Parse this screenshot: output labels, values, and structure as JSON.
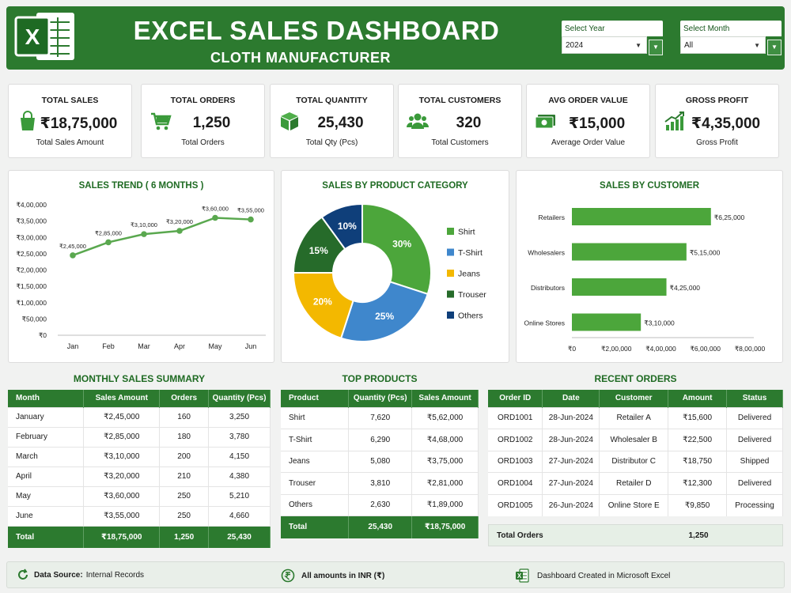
{
  "header": {
    "title": "EXCEL SALES DASHBOARD",
    "subtitle": "CLOTH MANUFACTURER",
    "logo_letter": "X",
    "year_filter": {
      "label": "Select Year",
      "value": "2024"
    },
    "month_filter": {
      "label": "Select Month",
      "value": "All"
    }
  },
  "kpis": [
    {
      "title": "TOTAL SALES",
      "value": "₹18,75,000",
      "sub": "Total Sales Amount",
      "icon": "shopping-bag-icon"
    },
    {
      "title": "TOTAL ORDERS",
      "value": "1,250",
      "sub": "Total Orders",
      "icon": "shopping-cart-icon"
    },
    {
      "title": "TOTAL QUANTITY",
      "value": "25,430",
      "sub": "Total Qty (Pcs)",
      "icon": "box-icon"
    },
    {
      "title": "TOTAL CUSTOMERS",
      "value": "320",
      "sub": "Total Customers",
      "icon": "users-icon"
    },
    {
      "title": "AVG ORDER VALUE",
      "value": "₹15,000",
      "sub": "Average Order Value",
      "icon": "cash-icon"
    },
    {
      "title": "GROSS PROFIT",
      "value": "₹4,35,000",
      "sub": "Gross Profit",
      "icon": "growth-chart-icon"
    }
  ],
  "chart_data": [
    {
      "type": "line",
      "title": "SALES TREND ( 6 MONTHS )",
      "categories": [
        "Jan",
        "Feb",
        "Mar",
        "Apr",
        "May",
        "Jun"
      ],
      "values": [
        245000,
        285000,
        310000,
        320000,
        360000,
        355000
      ],
      "data_labels": [
        "₹2,45,000",
        "₹2,85,000",
        "₹3,10,000",
        "₹3,20,000",
        "₹3,60,000",
        "₹3,55,000"
      ],
      "ylim": [
        0,
        400000
      ],
      "y_ticks": [
        "₹0",
        "₹50,000",
        "₹1,00,000",
        "₹1,50,000",
        "₹2,00,000",
        "₹2,50,000",
        "₹3,00,000",
        "₹3,50,000",
        "₹4,00,000"
      ],
      "color": "#5aa84f",
      "grid": false
    },
    {
      "type": "pie",
      "title": "SALES BY PRODUCT CATEGORY",
      "donut": true,
      "categories": [
        "Shirt",
        "T-Shirt",
        "Jeans",
        "Trouser",
        "Others"
      ],
      "values": [
        30,
        25,
        20,
        15,
        10
      ],
      "labels": [
        "30%",
        "25%",
        "20%",
        "15%",
        "10%"
      ],
      "colors": [
        "#4ca63b",
        "#3f87cc",
        "#f3b800",
        "#266b2a",
        "#0f3f7a"
      ],
      "legend": "right"
    },
    {
      "type": "bar",
      "orientation": "horizontal",
      "title": "SALES BY CUSTOMER",
      "categories": [
        "Retailers",
        "Wholesalers",
        "Distributors",
        "Online Stores"
      ],
      "values": [
        625000,
        515000,
        425000,
        310000
      ],
      "data_labels": [
        "₹6,25,000",
        "₹5,15,000",
        "₹4,25,000",
        "₹3,10,000"
      ],
      "xlim": [
        0,
        800000
      ],
      "x_ticks": [
        "₹0",
        "₹2,00,000",
        "₹4,00,000",
        "₹6,00,000",
        "₹8,00,000"
      ],
      "color": "#4ca63b"
    }
  ],
  "monthly_summary": {
    "title": "MONTHLY SALES SUMMARY",
    "headers": [
      "Month",
      "Sales Amount",
      "Orders",
      "Quantity (Pcs)"
    ],
    "rows": [
      [
        "January",
        "₹2,45,000",
        "160",
        "3,250"
      ],
      [
        "February",
        "₹2,85,000",
        "180",
        "3,780"
      ],
      [
        "March",
        "₹3,10,000",
        "200",
        "4,150"
      ],
      [
        "April",
        "₹3,20,000",
        "210",
        "4,380"
      ],
      [
        "May",
        "₹3,60,000",
        "250",
        "5,210"
      ],
      [
        "June",
        "₹3,55,000",
        "250",
        "4,660"
      ]
    ],
    "total": [
      "Total",
      "₹18,75,000",
      "1,250",
      "25,430"
    ]
  },
  "top_products": {
    "title": "TOP PRODUCTS",
    "headers": [
      "Product",
      "Quantity (Pcs)",
      "Sales Amount"
    ],
    "rows": [
      [
        "Shirt",
        "7,620",
        "₹5,62,000"
      ],
      [
        "T-Shirt",
        "6,290",
        "₹4,68,000"
      ],
      [
        "Jeans",
        "5,080",
        "₹3,75,000"
      ],
      [
        "Trouser",
        "3,810",
        "₹2,81,000"
      ],
      [
        "Others",
        "2,630",
        "₹1,89,000"
      ]
    ],
    "total": [
      "Total",
      "25,430",
      "₹18,75,000"
    ]
  },
  "recent_orders": {
    "title": "RECENT ORDERS",
    "headers": [
      "Order ID",
      "Date",
      "Customer",
      "Amount",
      "Status"
    ],
    "rows": [
      [
        "ORD1001",
        "28-Jun-2024",
        "Retailer A",
        "₹15,600",
        "Delivered"
      ],
      [
        "ORD1002",
        "28-Jun-2024",
        "Wholesaler B",
        "₹22,500",
        "Delivered"
      ],
      [
        "ORD1003",
        "27-Jun-2024",
        "Distributor C",
        "₹18,750",
        "Shipped"
      ],
      [
        "ORD1004",
        "27-Jun-2024",
        "Retailer D",
        "₹12,300",
        "Delivered"
      ],
      [
        "ORD1005",
        "26-Jun-2024",
        "Online Store E",
        "₹9,850",
        "Processing"
      ]
    ],
    "total_label": "Total Orders",
    "total_value": "1,250"
  },
  "footer": {
    "source_label": "Data Source:",
    "source_value": "Internal Records",
    "currency_note": "All amounts in INR (₹)",
    "created_note": "Dashboard Created in Microsoft Excel",
    "logo_letter": "X"
  }
}
